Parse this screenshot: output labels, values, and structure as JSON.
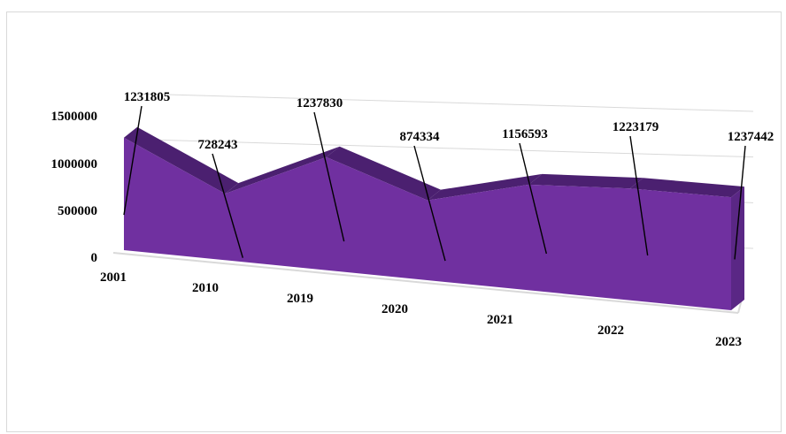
{
  "chart_data": {
    "type": "area",
    "style": "3d",
    "categories": [
      "2001",
      "2010",
      "2019",
      "2020",
      "2021",
      "2022",
      "2023"
    ],
    "values": [
      1231805,
      728243,
      1237830,
      874334,
      1156593,
      1223179,
      1237442
    ],
    "y_ticks": [
      "0",
      "500000",
      "1000000",
      "1500000"
    ],
    "ylim": [
      0,
      1500000
    ],
    "grid": true,
    "legend": "none",
    "colors": {
      "face": "#7030a0",
      "top": "#4b2070",
      "side": "#5a2785"
    }
  }
}
